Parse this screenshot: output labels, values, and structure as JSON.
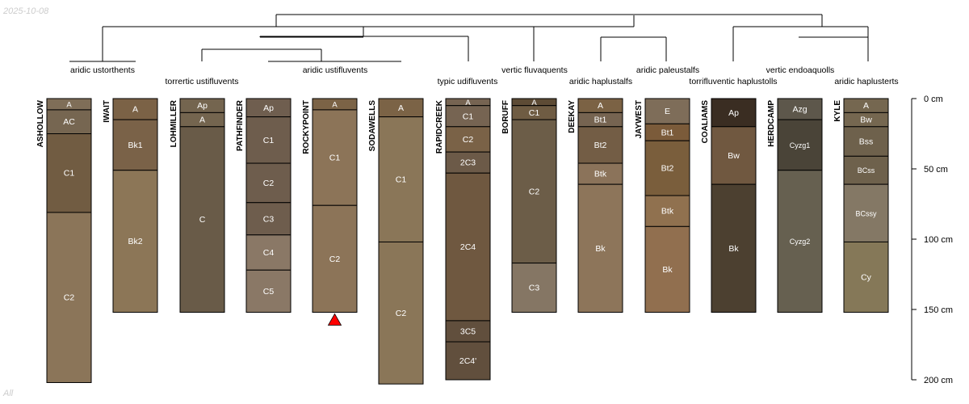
{
  "date_stamp": "2025-10-08",
  "footer_note": "All",
  "depth_axis": {
    "unit": "cm",
    "max": 200,
    "ticks": [
      {
        "value": 0,
        "label": "0 cm"
      },
      {
        "value": 50,
        "label": "50 cm"
      },
      {
        "value": 100,
        "label": "100 cm"
      },
      {
        "value": 150,
        "label": "150 cm"
      },
      {
        "value": 200,
        "label": "200 cm"
      }
    ]
  },
  "profiles": [
    {
      "name": "ASHOLLOW",
      "horizons": [
        {
          "name": "A",
          "top": 0,
          "bottom": 8,
          "color": "#7f6e58"
        },
        {
          "name": "AC",
          "top": 8,
          "bottom": 25,
          "color": "#766651"
        },
        {
          "name": "C1",
          "top": 25,
          "bottom": 81,
          "color": "#715c42"
        },
        {
          "name": "C2",
          "top": 81,
          "bottom": 202,
          "color": "#8b7559"
        }
      ]
    },
    {
      "name": "IWAIT",
      "horizons": [
        {
          "name": "A",
          "top": 0,
          "bottom": 15,
          "color": "#7b6246"
        },
        {
          "name": "Bk1",
          "top": 15,
          "bottom": 51,
          "color": "#7a6248"
        },
        {
          "name": "Bk2",
          "top": 51,
          "bottom": 152,
          "color": "#8c7657"
        }
      ]
    },
    {
      "name": "LOHMILLER",
      "horizons": [
        {
          "name": "Ap",
          "top": 0,
          "bottom": 10,
          "color": "#74654f"
        },
        {
          "name": "A",
          "top": 10,
          "bottom": 20,
          "color": "#74654f"
        },
        {
          "name": "C",
          "top": 20,
          "bottom": 152,
          "color": "#695b48"
        }
      ]
    },
    {
      "name": "PATHFINDER",
      "horizons": [
        {
          "name": "Ap",
          "top": 0,
          "bottom": 13,
          "color": "#6f5e4f"
        },
        {
          "name": "C1",
          "top": 13,
          "bottom": 46,
          "color": "#6e5d4d"
        },
        {
          "name": "C2",
          "top": 46,
          "bottom": 74,
          "color": "#6e5d4d"
        },
        {
          "name": "C3",
          "top": 74,
          "bottom": 97,
          "color": "#6e5d4d"
        },
        {
          "name": "C4",
          "top": 97,
          "bottom": 122,
          "color": "#8a7866"
        },
        {
          "name": "C5",
          "top": 122,
          "bottom": 152,
          "color": "#8a7866"
        }
      ]
    },
    {
      "name": "ROCKYPOINT",
      "marker": true,
      "horizons": [
        {
          "name": "A",
          "top": 0,
          "bottom": 8,
          "color": "#7b6346"
        },
        {
          "name": "C1",
          "top": 8,
          "bottom": 76,
          "color": "#8c7458"
        },
        {
          "name": "C2",
          "top": 76,
          "bottom": 152,
          "color": "#8c7458"
        }
      ]
    },
    {
      "name": "SODAWELLS",
      "horizons": [
        {
          "name": "A",
          "top": 0,
          "bottom": 13,
          "color": "#7b6346"
        },
        {
          "name": "C1",
          "top": 13,
          "bottom": 102,
          "color": "#8a7658"
        },
        {
          "name": "C2",
          "top": 102,
          "bottom": 203,
          "color": "#8a7658"
        }
      ]
    },
    {
      "name": "RAPIDCREEK",
      "horizons": [
        {
          "name": "A",
          "top": 0,
          "bottom": 5,
          "color": "#766452"
        },
        {
          "name": "C1",
          "top": 5,
          "bottom": 20,
          "color": "#766452"
        },
        {
          "name": "C2",
          "top": 20,
          "bottom": 38,
          "color": "#7a6247"
        },
        {
          "name": "2C3",
          "top": 38,
          "bottom": 53,
          "color": "#6c5a48"
        },
        {
          "name": "2C4",
          "top": 53,
          "bottom": 158,
          "color": "#6f5840"
        },
        {
          "name": "3C5",
          "top": 158,
          "bottom": 173,
          "color": "#614f3d"
        },
        {
          "name": "2C4'",
          "top": 173,
          "bottom": 200,
          "color": "#614f3d"
        }
      ]
    },
    {
      "name": "BORUFF",
      "horizons": [
        {
          "name": "A",
          "top": 0,
          "bottom": 5,
          "color": "#5d4b35"
        },
        {
          "name": "C1",
          "top": 5,
          "bottom": 15,
          "color": "#6f5c43"
        },
        {
          "name": "C2",
          "top": 15,
          "bottom": 117,
          "color": "#6c5d48"
        },
        {
          "name": "C3",
          "top": 117,
          "bottom": 152,
          "color": "#857664"
        }
      ]
    },
    {
      "name": "DEEKAY",
      "horizons": [
        {
          "name": "A",
          "top": 0,
          "bottom": 10,
          "color": "#7b6244"
        },
        {
          "name": "Bt1",
          "top": 10,
          "bottom": 20,
          "color": "#766451"
        },
        {
          "name": "Bt2",
          "top": 20,
          "bottom": 46,
          "color": "#735d45"
        },
        {
          "name": "Btk",
          "top": 46,
          "bottom": 61,
          "color": "#8b735a"
        },
        {
          "name": "Bk",
          "top": 61,
          "bottom": 152,
          "color": "#8d755a"
        }
      ]
    },
    {
      "name": "JAYWEST",
      "horizons": [
        {
          "name": "E",
          "top": 0,
          "bottom": 18,
          "color": "#7e6d59"
        },
        {
          "name": "Bt1",
          "top": 18,
          "bottom": 30,
          "color": "#7b5b3a"
        },
        {
          "name": "Bt2",
          "top": 30,
          "bottom": 69,
          "color": "#7a5e3c"
        },
        {
          "name": "Btk",
          "top": 69,
          "bottom": 91,
          "color": "#90714f"
        },
        {
          "name": "Bk",
          "top": 91,
          "bottom": 152,
          "color": "#916f4f"
        }
      ]
    },
    {
      "name": "COALIAMS",
      "horizons": [
        {
          "name": "Ap",
          "top": 0,
          "bottom": 20,
          "color": "#3a2d22"
        },
        {
          "name": "Bw",
          "top": 20,
          "bottom": 61,
          "color": "#705840"
        },
        {
          "name": "Bk",
          "top": 61,
          "bottom": 152,
          "color": "#4c4030"
        }
      ]
    },
    {
      "name": "HERDCAMP",
      "horizons": [
        {
          "name": "Azg",
          "top": 0,
          "bottom": 15,
          "color": "#5d574b"
        },
        {
          "name": "Cyzg1",
          "top": 15,
          "bottom": 51,
          "color": "#4a4438"
        },
        {
          "name": "Cyzg2",
          "top": 51,
          "bottom": 152,
          "color": "#666050"
        }
      ]
    },
    {
      "name": "KYLE",
      "horizons": [
        {
          "name": "A",
          "top": 0,
          "bottom": 10,
          "color": "#756750"
        },
        {
          "name": "Bw",
          "top": 10,
          "bottom": 20,
          "color": "#756750"
        },
        {
          "name": "Bss",
          "top": 20,
          "bottom": 41,
          "color": "#6e614c"
        },
        {
          "name": "BCss",
          "top": 41,
          "bottom": 61,
          "color": "#6e614c"
        },
        {
          "name": "BCssy",
          "top": 61,
          "bottom": 102,
          "color": "#847865"
        },
        {
          "name": "Cy",
          "top": 102,
          "bottom": 152,
          "color": "#857858"
        }
      ]
    }
  ],
  "taxa_labels": [
    "aridic ustorthents",
    "torrertic ustifluvents",
    "aridic ustifluvents",
    "typic udifluvents",
    "vertic fluvaquents",
    "aridic haplustalfs",
    "aridic paleustalfs",
    "torrifluventic haplustolls",
    "vertic endoaquolls",
    "aridic haplusterts"
  ],
  "colors": {
    "text": "#000000",
    "divider": "#000000",
    "marker": "#ff0000"
  }
}
